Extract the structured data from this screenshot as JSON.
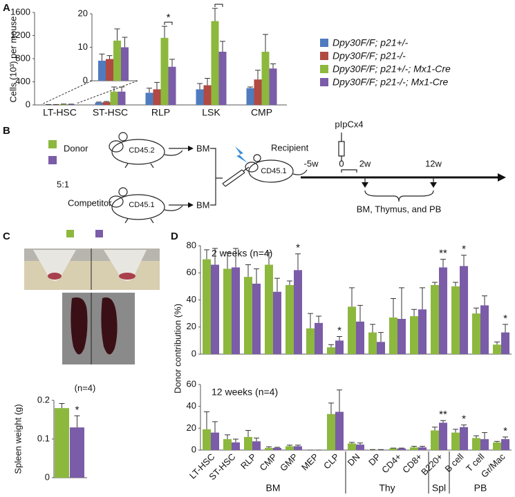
{
  "chart_data": [
    {
      "type": "bar",
      "label": "A",
      "ylabel": "Cells (10³) per mouse",
      "categories": [
        "LT-HSC",
        "ST-HSC",
        "RLP",
        "LSK",
        "CMP"
      ],
      "ylim": [
        0,
        1600
      ],
      "yticks": [
        0,
        400,
        800,
        1200,
        1600
      ],
      "series": [
        {
          "name": "Dpy30F/F; p21+/-",
          "color": "#4f7bbf",
          "values": [
            6,
            40,
            210,
            270,
            290
          ],
          "errors": [
            2,
            10,
            80,
            100,
            20
          ]
        },
        {
          "name": "Dpy30F/F; p21-/-",
          "color": "#b04a43",
          "values": [
            6.5,
            50,
            270,
            340,
            440
          ],
          "errors": [
            1,
            10,
            120,
            120,
            160
          ]
        },
        {
          "name": "Dpy30F/F; p21+/-; Mx1-Cre",
          "color": "#8db83e",
          "values": [
            12,
            230,
            1160,
            1450,
            920
          ],
          "errors": [
            3.5,
            80,
            200,
            220,
            300
          ]
        },
        {
          "name": "Dpy30F/F; p21-/-; Mx1-Cre",
          "color": "#7a5ca8",
          "values": [
            10,
            230,
            660,
            920,
            630
          ],
          "errors": [
            3,
            80,
            130,
            180,
            80
          ]
        }
      ],
      "annotations": [
        {
          "category": "RLP",
          "text": "*"
        },
        {
          "category": "LSK",
          "text": "*"
        }
      ],
      "inset": {
        "category": "LT-HSC",
        "ylim": [
          0,
          20
        ],
        "yticks": [
          0,
          10,
          20
        ]
      }
    },
    {
      "type": "bar",
      "label": "C",
      "title": "(n=4)",
      "ylabel": "Spleen weight (g)",
      "ylim": [
        0,
        0.2
      ],
      "yticks": [
        0,
        0.1,
        0.2
      ],
      "values": [
        0.18,
        0.13
      ],
      "errors": [
        0.012,
        0.03
      ],
      "colors": [
        "#8db83e",
        "#7a5ca8"
      ],
      "annotation": "*"
    },
    {
      "type": "bar",
      "label": "D",
      "ylabel": "Donor contribution (%)",
      "categories": [
        "LT-HSC",
        "ST-HSC",
        "RLP",
        "CMP",
        "GMP",
        "MEP",
        "CLP",
        "DN",
        "DP",
        "CD4+",
        "CD8+",
        "B220+",
        "B cell",
        "T cell",
        "Gr/Mac"
      ],
      "groups": [
        {
          "label": "BM",
          "from": "LT-HSC",
          "to": "CLP"
        },
        {
          "label": "Thy",
          "from": "DN",
          "to": "CD8+"
        },
        {
          "label": "Spl",
          "from": "B220+",
          "to": "B220+"
        },
        {
          "label": "PB",
          "from": "B cell",
          "to": "Gr/Mac"
        }
      ],
      "panels": [
        {
          "title": "2 weeks (n=4)",
          "ylim": [
            0,
            80
          ],
          "yticks": [
            0,
            20,
            40,
            60,
            80
          ],
          "series": [
            {
              "color": "#8db83e",
              "values": [
                70,
                63,
                57,
                66,
                51,
                19,
                5,
                35,
                16,
                27,
                28,
                51,
                50,
                30,
                7
              ],
              "errors": [
                7,
                12,
                9,
                9,
                3,
                11,
                2,
                14,
                6,
                14,
                5,
                2,
                3,
                4,
                2
              ]
            },
            {
              "color": "#7a5ca8",
              "values": [
                66,
                64,
                52,
                46,
                62,
                23,
                10,
                24,
                9,
                26,
                33,
                64,
                65,
                36,
                16
              ],
              "errors": [
                12,
                14,
                11,
                10,
                12,
                5,
                3,
                12,
                7,
                23,
                16,
                6,
                8,
                7,
                6
              ]
            }
          ],
          "annotations": [
            {
              "category": "GMP",
              "text": "*"
            },
            {
              "category": "CLP",
              "text": "*"
            },
            {
              "category": "B220+",
              "text": "**"
            },
            {
              "category": "B cell",
              "text": "*"
            },
            {
              "category": "Gr/Mac",
              "text": "*"
            }
          ]
        },
        {
          "title": "12 weeks (n=4)",
          "ylim": [
            0,
            60
          ],
          "yticks": [
            0,
            20,
            40,
            60
          ],
          "series": [
            {
              "color": "#8db83e",
              "values": [
                19,
                10,
                12,
                2,
                3.5,
                0,
                33,
                6,
                0.3,
                1.5,
                2.5,
                18,
                16,
                11,
                7
              ],
              "errors": [
                16,
                4,
                6,
                1,
                1,
                0,
                10,
                1,
                0.2,
                0.3,
                1,
                3,
                3,
                2,
                1
              ]
            },
            {
              "color": "#7a5ca8",
              "values": [
                16,
                7,
                8,
                2,
                3.5,
                0,
                35,
                5,
                0.3,
                1.5,
                2.5,
                25,
                21,
                10,
                10
              ],
              "errors": [
                10,
                3,
                3,
                0.5,
                1,
                0,
                20,
                1.5,
                0.2,
                0.3,
                1,
                2,
                2,
                6,
                2
              ]
            }
          ],
          "annotations": [
            {
              "category": "B220+",
              "text": "**"
            },
            {
              "category": "B cell",
              "text": "*"
            },
            {
              "category": "Gr/Mac",
              "text": "*"
            }
          ]
        }
      ]
    }
  ],
  "diagram": {
    "label": "B",
    "donor": "Donor",
    "ratio": "5:1",
    "competitor": "Competitor",
    "donor_marker": "CD45.2",
    "competitor_marker": "CD45.1",
    "donor_output": "BM",
    "competitor_output": "BM",
    "recipient": "Recipient",
    "recipient_marker": "CD45.1",
    "treatment": "pIpCx4",
    "timepoints": [
      "-5w",
      "0",
      "2w",
      "12w"
    ],
    "analysis": "BM, Thymus, and PB",
    "colors": [
      "#8db83e",
      "#7a5ca8"
    ]
  }
}
